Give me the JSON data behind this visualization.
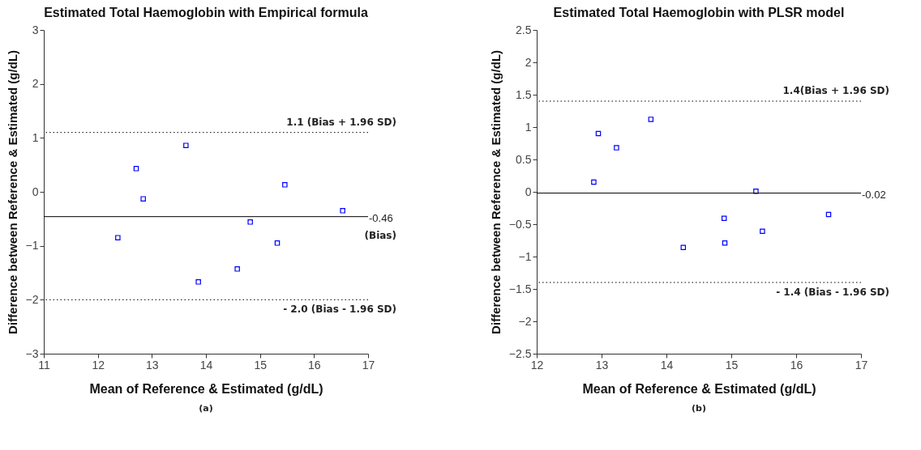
{
  "chart_data": [
    {
      "type": "scatter",
      "title": "Estimated Total  Haemoglobin with Empirical formula",
      "xlabel": "Mean of Reference & Estimated (g/dL)",
      "ylabel": "Difference between Reference & Estimated (g/dL)",
      "x": [
        12.37,
        12.71,
        12.84,
        13.63,
        13.86,
        14.58,
        14.82,
        15.32,
        15.46,
        16.53
      ],
      "series": [
        {
          "color": "#0000ff",
          "values": [
            -0.85,
            0.43,
            -0.13,
            0.86,
            -1.67,
            -1.43,
            -0.56,
            -0.95,
            0.13,
            -0.35
          ]
        }
      ],
      "xlim": [
        11,
        17
      ],
      "xticks": [
        11,
        12,
        13,
        14,
        15,
        16,
        17
      ],
      "ylim": [
        -3,
        3
      ],
      "yticks": [
        -3,
        -2,
        -1,
        0,
        1,
        2,
        3
      ],
      "marker": "square",
      "grid": false,
      "legend": false,
      "ref_lines": [
        {
          "axis": "y",
          "value": 1.1,
          "label": "1.1 (Bias + 1.96 SD)",
          "line_style": "dotted"
        },
        {
          "axis": "y",
          "value": -0.46,
          "label": "-0.46",
          "line_style": "solid"
        },
        {
          "axis": "y",
          "value": -2.0,
          "label": "- 2.0 (Bias - 1.96 SD)",
          "line_style": "dotted"
        }
      ],
      "annotations": [
        "(Bias)",
        "(a)"
      ]
    },
    {
      "type": "scatter",
      "title": "Estimated Total  Haemoglobin with PLSR model",
      "xlabel": "Mean of Reference & Estimated (g/dL)",
      "ylabel": "Difference between Reference & Estimated (g/dL)",
      "x": [
        12.88,
        12.95,
        13.23,
        13.76,
        14.26,
        14.89,
        14.9,
        15.38,
        15.48,
        16.5
      ],
      "series": [
        {
          "color": "#0000ff",
          "values": [
            0.15,
            0.9,
            0.68,
            1.12,
            -0.86,
            -0.41,
            -0.79,
            0.01,
            -0.61,
            -0.35
          ]
        }
      ],
      "xlim": [
        12,
        17
      ],
      "xticks": [
        12,
        13,
        14,
        15,
        16,
        17
      ],
      "ylim": [
        -2.5,
        2.5
      ],
      "yticks": [
        -2.5,
        -2,
        -1.5,
        -1,
        -0.5,
        0,
        0.5,
        1,
        1.5,
        2,
        2.5
      ],
      "marker": "square",
      "grid": false,
      "legend": false,
      "ref_lines": [
        {
          "axis": "y",
          "value": 1.4,
          "label": "1.4(Bias + 1.96 SD)",
          "line_style": "dotted"
        },
        {
          "axis": "y",
          "value": -0.02,
          "label": "-0.02",
          "line_style": "solid"
        },
        {
          "axis": "y",
          "value": -1.4,
          "label": "- 1.4 (Bias - 1.96 SD)",
          "line_style": "dotted"
        }
      ],
      "annotations": [
        "(b)"
      ]
    }
  ]
}
